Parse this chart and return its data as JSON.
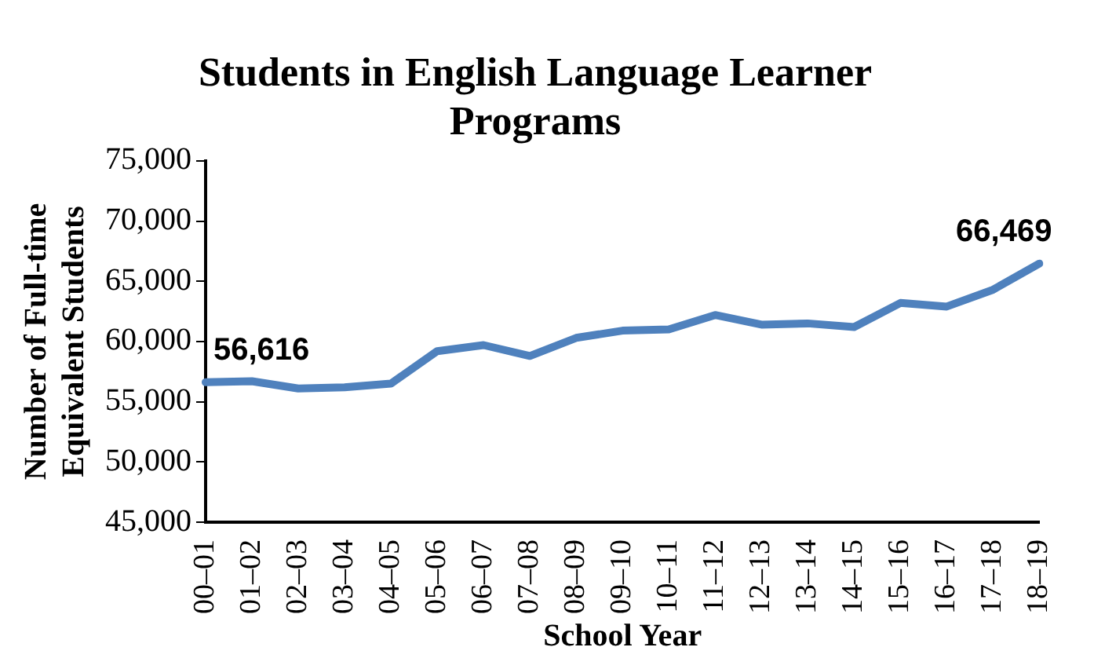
{
  "chart_data": {
    "type": "line",
    "title": "Students in English Language Learner Programs",
    "xlabel": "School Year",
    "ylabel": "Number of Full-time Equivalent Students",
    "categories": [
      "00–01",
      "01–02",
      "02–03",
      "03–04",
      "04–05",
      "05–06",
      "06–07",
      "07–08",
      "08–09",
      "09–10",
      "10–11",
      "11–12",
      "12–13",
      "13–14",
      "14–15",
      "15–16",
      "16–17",
      "17–18",
      "18–19"
    ],
    "series": [
      {
        "color": "#4f81bd",
        "values": [
          56616,
          56700,
          56100,
          56200,
          56500,
          59200,
          59700,
          58800,
          60300,
          60900,
          61000,
          62200,
          61400,
          61500,
          61200,
          63200,
          62900,
          64300,
          66469
        ],
        "value_labels": [
          "56,616",
          null,
          null,
          null,
          null,
          null,
          null,
          null,
          null,
          null,
          null,
          null,
          null,
          null,
          null,
          null,
          null,
          null,
          "66,469"
        ]
      }
    ],
    "ylim": [
      45000,
      75000
    ],
    "yticks": [
      {
        "value": 45000,
        "label": "45,000"
      },
      {
        "value": 50000,
        "label": "50,000"
      },
      {
        "value": 55000,
        "label": "55,000"
      },
      {
        "value": 60000,
        "label": "60,000"
      },
      {
        "value": 65000,
        "label": "65,000"
      },
      {
        "value": 70000,
        "label": "70,000"
      },
      {
        "value": 75000,
        "label": "75,000"
      }
    ],
    "grid": false,
    "legend": false,
    "marker": "none",
    "line_style": "solid"
  }
}
